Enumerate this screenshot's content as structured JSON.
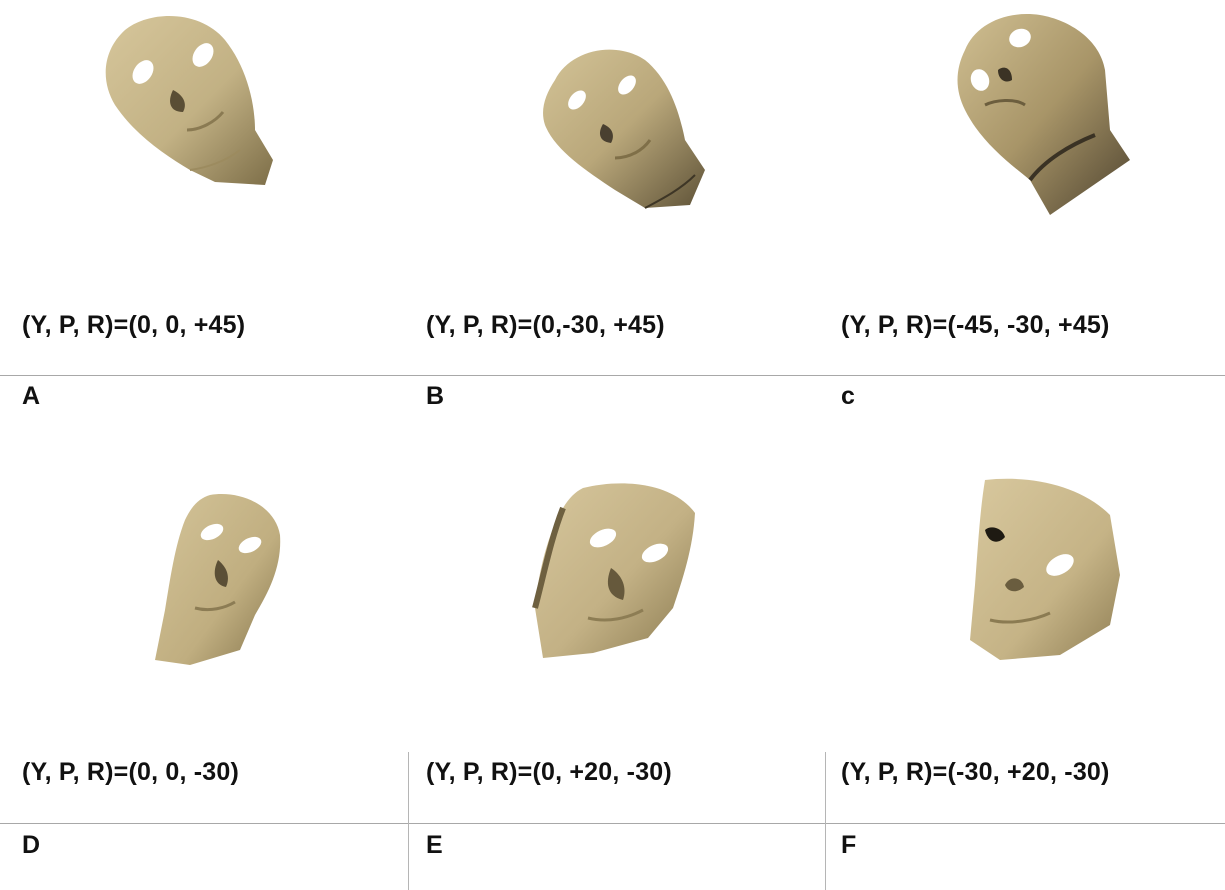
{
  "figure": {
    "panels": [
      {
        "letter": "A",
        "caption": "(Y, P, R)=(0, 0, +45)"
      },
      {
        "letter": "B",
        "caption": "(Y, P, R)=(0,-30, +45)"
      },
      {
        "letter": "c",
        "caption": "(Y, P, R)=(-45, -30, +45)"
      },
      {
        "letter": "D",
        "caption": "(Y, P, R)=(0, 0, -30)"
      },
      {
        "letter": "E",
        "caption": "(Y, P, R)=(0, +20, -30)"
      },
      {
        "letter": "F",
        "caption": "(Y, P, R)=(-30, +20, -30)"
      }
    ]
  },
  "colors": {
    "skin": "#c9b88d",
    "skin_shadow": "#8d7d55",
    "skin_dark": "#4e4530",
    "rule": "#a8a8a8"
  }
}
